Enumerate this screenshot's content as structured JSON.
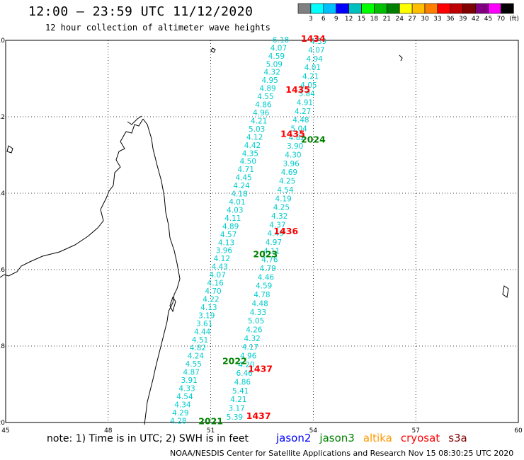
{
  "header": {
    "title": "12:00 – 23:59 UTC 11/12/2020",
    "subtitle": "12 hour collection of altimeter wave heights"
  },
  "legend": {
    "labels": [
      "3",
      "6",
      "9",
      "12",
      "15",
      "18",
      "21",
      "24",
      "27",
      "30",
      "33",
      "36",
      "39",
      "42",
      "45",
      "70"
    ],
    "unit": "(ft)",
    "colors": [
      "#808080",
      "#00ffff",
      "#00bfff",
      "#0000ff",
      "#00bfbf",
      "#00ff00",
      "#00bf00",
      "#008000",
      "#ffff00",
      "#ffbf00",
      "#ff8000",
      "#ff0000",
      "#bf0000",
      "#800000",
      "#800080",
      "#ff00ff",
      "#000000"
    ]
  },
  "axes": {
    "x_ticks": [
      "45",
      "48",
      "51",
      "54",
      "57",
      "60"
    ],
    "y_ticks": [
      "-10",
      "-12",
      "-14",
      "-16",
      "-18",
      "-20"
    ]
  },
  "times": [
    {
      "label": "1434",
      "color": "#ff0000",
      "lon": 54.0,
      "lat": -9.96
    },
    {
      "label": "1435",
      "color": "#ff0000",
      "lon": 53.55,
      "lat": -11.3
    },
    {
      "label": "1435",
      "color": "#ff0000",
      "lon": 53.4,
      "lat": -12.45
    },
    {
      "label": "2024",
      "color": "#008000",
      "lon": 54.0,
      "lat": -12.6
    },
    {
      "label": "1436",
      "color": "#ff0000",
      "lon": 53.2,
      "lat": -15.0
    },
    {
      "label": "2023",
      "color": "#008000",
      "lon": 52.6,
      "lat": -15.6
    },
    {
      "label": "1437",
      "color": "#ff0000",
      "lon": 52.45,
      "lat": -18.6
    },
    {
      "label": "2022",
      "color": "#008000",
      "lon": 51.7,
      "lat": -18.4
    },
    {
      "label": "1437",
      "color": "#ff0000",
      "lon": 52.4,
      "lat": -19.83
    },
    {
      "label": "2021",
      "color": "#008000",
      "lon": 51.0,
      "lat": -19.97
    }
  ],
  "tracks": [
    {
      "name": "jason3 descending",
      "color": "#00cccc",
      "lat_start": -9.98,
      "lat_end": -19.95,
      "lon_start": 53.05,
      "lon_end": 50.05,
      "values": [
        "6.18",
        "4.07",
        "4.59",
        "5.09",
        "4.32",
        "4.95",
        "4.89",
        "4.55",
        "4.86",
        "4.96",
        "4.21",
        "5.03",
        "4.12",
        "4.42",
        "4.35",
        "4.50",
        "4.71",
        "4.45",
        "4.24",
        "4.18",
        "4.01",
        "4.03",
        "4.11",
        "4.89",
        "4.57",
        "4.13",
        "3.96",
        "4.12",
        "4.43",
        "4.07",
        "4.16",
        "4.70",
        "4.22",
        "4.13",
        "3.19",
        "3.61",
        "4.44",
        "4.51",
        "4.82",
        "4.24",
        "4.55",
        "4.87",
        "3.91",
        "4.33",
        "4.54",
        "4.34",
        "4.29",
        "4.28"
      ]
    },
    {
      "name": "jason3 ascending",
      "color": "#00cccc",
      "lat_start": -10.02,
      "lat_end": -19.85,
      "lon_start": 54.15,
      "lon_end": 51.7,
      "values": [
        "4.39",
        "4.07",
        "4.94",
        "4.01",
        "4.21",
        "4.05",
        "3.84",
        "4.91",
        "4.27",
        "4.48",
        "5.04",
        "4.82",
        "3.90",
        "4.30",
        "3.96",
        "4.69",
        "4.25",
        "4.54",
        "4.19",
        "4.25",
        "4.32",
        "4.37",
        "4.49",
        "4.97",
        "4.11",
        "4.76",
        "4.79",
        "4.46",
        "4.59",
        "4.78",
        "4.48",
        "4.33",
        "5.05",
        "4.26",
        "4.32",
        "4.17",
        "4.96",
        "4.20",
        "6.46",
        "4.86",
        "5.41",
        "4.21",
        "3.17",
        "5.39"
      ]
    }
  ],
  "footer": {
    "note": "note: 1) Time is in UTC; 2) SWH is in feet",
    "satellites": [
      {
        "label": "jason2",
        "color": "#0000ff"
      },
      {
        "label": "jason3",
        "color": "#008000"
      },
      {
        "label": "altika",
        "color": "#ff9900"
      },
      {
        "label": "cryosat",
        "color": "#ff0000"
      },
      {
        "label": "s3a",
        "color": "#800000"
      }
    ],
    "credit": "NOAA/NESDIS Center for Satellite Applications and Research    Nov 15 08:30:25 UTC 2020"
  }
}
